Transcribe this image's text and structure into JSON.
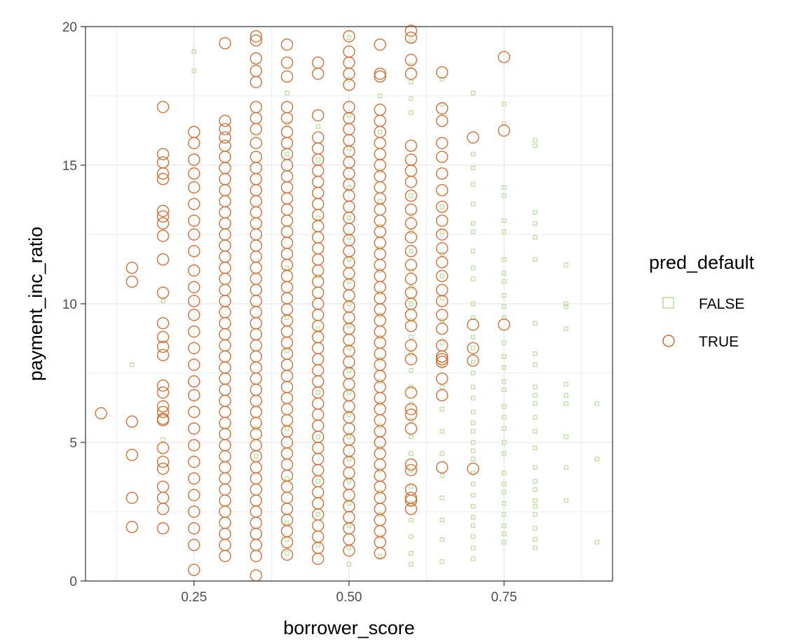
{
  "chart_data": {
    "type": "scatter",
    "xlabel": "borrower_score",
    "ylabel": "payment_inc_ratio",
    "xlim": [
      0.075,
      0.925
    ],
    "ylim": [
      0,
      20
    ],
    "x_ticks": [
      0.25,
      0.5,
      0.75
    ],
    "x_tick_labels": [
      "0.25",
      "0.50",
      "0.75"
    ],
    "y_ticks": [
      0,
      5,
      10,
      15,
      20
    ],
    "y_tick_labels": [
      "0",
      "5",
      "10",
      "15",
      "20"
    ],
    "grid": true,
    "legend": {
      "title": "pred_default",
      "placement": "right",
      "entries": [
        {
          "label": "FALSE",
          "shape": "square",
          "color": "#b5dc93"
        },
        {
          "label": "TRUE",
          "shape": "circle",
          "color": "#d2692d"
        }
      ]
    },
    "series": [
      {
        "name": "FALSE",
        "shape": "square",
        "color": "#b5dc93",
        "columns": [
          {
            "x": 0.15,
            "y": [
              7.8
            ]
          },
          {
            "x": 0.2,
            "y": [
              10.1,
              5.1
            ]
          },
          {
            "x": 0.25,
            "y": [
              19.1,
              18.4
            ]
          },
          {
            "x": 0.35,
            "y": [
              5.5,
              4.5
            ]
          },
          {
            "x": 0.4,
            "y": [
              17.6,
              16.5,
              15.4,
              11.3,
              9.5,
              8.3,
              5.5,
              3.7,
              2.1,
              1.5,
              1.0
            ]
          },
          {
            "x": 0.45,
            "y": [
              16.4,
              15.2,
              13.1,
              11.0,
              9.1,
              6.8,
              5.2,
              3.6,
              2.4,
              1.3
            ]
          },
          {
            "x": 0.5,
            "y": [
              19.6,
              18.1,
              16.8,
              15.6,
              14.2,
              13.1,
              12.4,
              11.6,
              10.8,
              10.0,
              9.2,
              8.4,
              7.6,
              6.8,
              6.0,
              5.2,
              4.4,
              3.6,
              2.8,
              2.0,
              1.2,
              0.6
            ]
          },
          {
            "x": 0.55,
            "y": [
              17.5,
              16.2,
              14.8,
              13.7,
              12.8,
              12.0,
              11.2,
              10.4,
              9.6,
              8.8,
              8.0,
              7.2,
              6.4,
              5.6,
              4.8,
              4.0,
              3.2,
              2.4,
              1.6,
              0.9
            ]
          },
          {
            "x": 0.6,
            "y": [
              19.5,
              18.6,
              18.0,
              17.4,
              16.9,
              13.9,
              13.2,
              12.6,
              11.9,
              11.2,
              10.6,
              10.0,
              9.4,
              8.8,
              8.2,
              7.6,
              7.0,
              6.4,
              5.8,
              5.2,
              4.6,
              4.0,
              3.4,
              2.8,
              2.2,
              1.6,
              1.0,
              0.6
            ]
          },
          {
            "x": 0.65,
            "y": [
              18.1,
              17.2,
              13.5,
              12.6,
              11.8,
              11.0,
              10.2,
              9.4,
              8.6,
              7.8,
              7.0,
              6.2,
              5.4,
              4.6,
              3.8,
              3.0,
              2.2,
              1.5,
              0.7
            ]
          },
          {
            "x": 0.7,
            "y": [
              17.6,
              15.4,
              14.9,
              14.3,
              13.6,
              12.9,
              12.6,
              11.9,
              11.3,
              10.9,
              10.0,
              9.5,
              8.8,
              8.4,
              7.9,
              7.5,
              7.0,
              6.6,
              6.1,
              5.7,
              5.4,
              5.0,
              4.7,
              4.4,
              3.9,
              3.5,
              3.1,
              2.7,
              2.3,
              2.0,
              1.6,
              1.2,
              0.8
            ]
          },
          {
            "x": 0.75,
            "y": [
              17.2,
              16.5,
              14.2,
              13.9,
              13.0,
              12.6,
              11.6,
              11.1,
              10.8,
              10.3,
              9.9,
              9.5,
              8.6,
              8.1,
              7.7,
              7.2,
              6.9,
              6.3,
              5.9,
              5.5,
              5.0,
              4.6,
              3.9,
              3.5,
              3.2,
              2.8,
              2.4,
              2.0,
              1.7,
              1.4
            ]
          },
          {
            "x": 0.8,
            "y": [
              15.9,
              15.7,
              13.3,
              12.9,
              12.4,
              11.6,
              9.3,
              8.2,
              7.8,
              7.0,
              6.7,
              6.4,
              5.9,
              5.4,
              4.8,
              4.1,
              3.6,
              3.3,
              2.9,
              2.7,
              2.4,
              1.9,
              1.5,
              1.2
            ]
          },
          {
            "x": 0.85,
            "y": [
              11.4,
              10.0,
              9.9,
              9.1,
              7.1,
              6.7,
              6.4,
              5.2,
              4.1,
              2.9
            ]
          },
          {
            "x": 0.9,
            "y": [
              6.4,
              4.4,
              1.4
            ]
          }
        ]
      },
      {
        "name": "TRUE",
        "shape": "circle",
        "color": "#d2692d",
        "columns": [
          {
            "x": 0.1,
            "y": [
              6.05
            ]
          },
          {
            "x": 0.15,
            "y": [
              11.3,
              10.8,
              5.75,
              4.55,
              3.0,
              1.95
            ]
          },
          {
            "x": 0.2,
            "y": [
              17.1,
              15.4,
              15.1,
              14.7,
              14.5,
              13.35,
              13.15,
              12.9,
              12.45,
              11.6,
              10.4,
              9.3,
              8.8,
              8.45,
              8.15,
              7.05,
              6.8,
              6.3,
              6.1,
              5.85,
              5.8,
              4.8,
              4.3,
              4.05,
              3.4,
              3.0,
              2.6,
              1.9
            ]
          },
          {
            "x": 0.25,
            "y": [
              16.2,
              15.8,
              15.2,
              14.7,
              14.2,
              13.6,
              13.0,
              12.5,
              11.9,
              11.2,
              10.6,
              10.1,
              9.6,
              9.0,
              8.4,
              7.8,
              7.2,
              6.7,
              6.1,
              5.5,
              4.9,
              4.3,
              3.7,
              3.1,
              2.5,
              1.9,
              1.3,
              0.4
            ]
          },
          {
            "x": 0.3,
            "y": [
              19.4,
              16.6,
              16.3,
              16.0,
              15.7,
              15.3,
              14.9,
              14.5,
              14.1,
              13.7,
              13.3,
              12.9,
              12.5,
              12.1,
              11.7,
              11.3,
              10.9,
              10.5,
              10.1,
              9.7,
              9.3,
              8.9,
              8.5,
              8.1,
              7.7,
              7.3,
              6.9,
              6.5,
              6.1,
              5.7,
              5.3,
              4.9,
              4.5,
              4.1,
              3.7,
              3.3,
              2.9,
              2.5,
              2.1,
              1.7,
              1.3,
              0.9
            ]
          },
          {
            "x": 0.35,
            "y": [
              19.65,
              19.5,
              18.85,
              18.4,
              18.0,
              17.1,
              16.7,
              16.3,
              15.8,
              15.3,
              14.9,
              14.5,
              14.1,
              13.7,
              13.3,
              12.9,
              12.5,
              12.1,
              11.7,
              11.3,
              10.9,
              10.5,
              10.1,
              9.7,
              9.3,
              8.9,
              8.5,
              8.1,
              7.7,
              7.3,
              6.9,
              6.5,
              6.1,
              5.7,
              5.3,
              4.9,
              4.5,
              4.1,
              3.7,
              3.3,
              2.9,
              2.5,
              2.1,
              1.7,
              1.3,
              0.9,
              0.2
            ]
          },
          {
            "x": 0.4,
            "y": [
              19.35,
              18.7,
              18.2,
              17.1,
              16.7,
              16.2,
              15.8,
              15.4,
              15.0,
              14.6,
              14.2,
              13.8,
              13.4,
              13.0,
              12.6,
              12.2,
              11.8,
              11.4,
              11.0,
              10.6,
              10.2,
              9.8,
              9.4,
              9.0,
              8.6,
              8.2,
              7.8,
              7.4,
              7.0,
              6.6,
              6.2,
              5.8,
              5.4,
              5.0,
              4.6,
              4.2,
              3.8,
              3.4,
              3.0,
              2.6,
              2.2,
              1.8,
              1.4,
              0.95
            ]
          },
          {
            "x": 0.45,
            "y": [
              18.7,
              18.3,
              16.8,
              16.0,
              15.6,
              15.2,
              14.8,
              14.4,
              14.0,
              13.6,
              13.2,
              12.8,
              12.4,
              12.0,
              11.6,
              11.2,
              10.8,
              10.4,
              10.0,
              9.6,
              9.2,
              8.8,
              8.4,
              8.0,
              7.6,
              7.2,
              6.8,
              6.4,
              6.0,
              5.6,
              5.2,
              4.8,
              4.4,
              4.0,
              3.6,
              3.2,
              2.8,
              2.4,
              2.0,
              1.6,
              1.2,
              0.8
            ]
          },
          {
            "x": 0.5,
            "y": [
              19.65,
              19.1,
              18.7,
              18.3,
              17.9,
              17.1,
              16.7,
              16.3,
              15.9,
              15.5,
              15.1,
              14.7,
              14.3,
              13.9,
              13.5,
              13.1,
              12.7,
              12.3,
              11.9,
              11.5,
              11.1,
              10.7,
              10.3,
              9.9,
              9.5,
              9.1,
              8.7,
              8.3,
              7.9,
              7.5,
              7.1,
              6.7,
              6.3,
              5.9,
              5.5,
              5.1,
              4.7,
              4.3,
              3.9,
              3.5,
              3.1,
              2.7,
              2.3,
              1.9,
              1.5,
              1.1
            ]
          },
          {
            "x": 0.55,
            "y": [
              19.35,
              18.3,
              18.2,
              17.0,
              16.6,
              16.2,
              15.8,
              15.4,
              15.0,
              14.6,
              14.2,
              13.8,
              13.4,
              13.0,
              12.6,
              12.2,
              11.8,
              11.4,
              11.0,
              10.6,
              10.2,
              9.8,
              9.4,
              9.0,
              8.6,
              8.2,
              7.8,
              7.4,
              7.0,
              6.6,
              6.2,
              5.8,
              5.4,
              5.0,
              4.6,
              4.2,
              3.8,
              3.4,
              3.0,
              2.6,
              2.2,
              1.8,
              1.4,
              1.0
            ]
          },
          {
            "x": 0.6,
            "y": [
              19.85,
              19.6,
              18.8,
              18.3,
              15.7,
              15.2,
              14.8,
              14.4,
              13.9,
              13.4,
              12.9,
              12.4,
              11.9,
              11.4,
              10.9,
              10.4,
              10.0,
              9.6,
              9.2,
              8.5,
              8.0,
              6.8,
              6.2,
              6.0,
              5.5,
              4.2,
              4.0,
              3.3,
              3.0,
              2.9,
              2.6
            ]
          },
          {
            "x": 0.65,
            "y": [
              18.35,
              17.05,
              16.6,
              15.8,
              15.3,
              14.7,
              14.1,
              13.5,
              13.0,
              12.5,
              12.0,
              11.5,
              11.0,
              10.5,
              10.1,
              9.6,
              9.1,
              8.5,
              8.1,
              8.0,
              7.9,
              7.3,
              6.7,
              4.1
            ]
          },
          {
            "x": 0.7,
            "y": [
              16.0,
              9.25,
              8.4,
              7.95,
              4.05
            ]
          },
          {
            "x": 0.75,
            "y": [
              18.9,
              16.25,
              9.25
            ]
          }
        ]
      }
    ]
  }
}
